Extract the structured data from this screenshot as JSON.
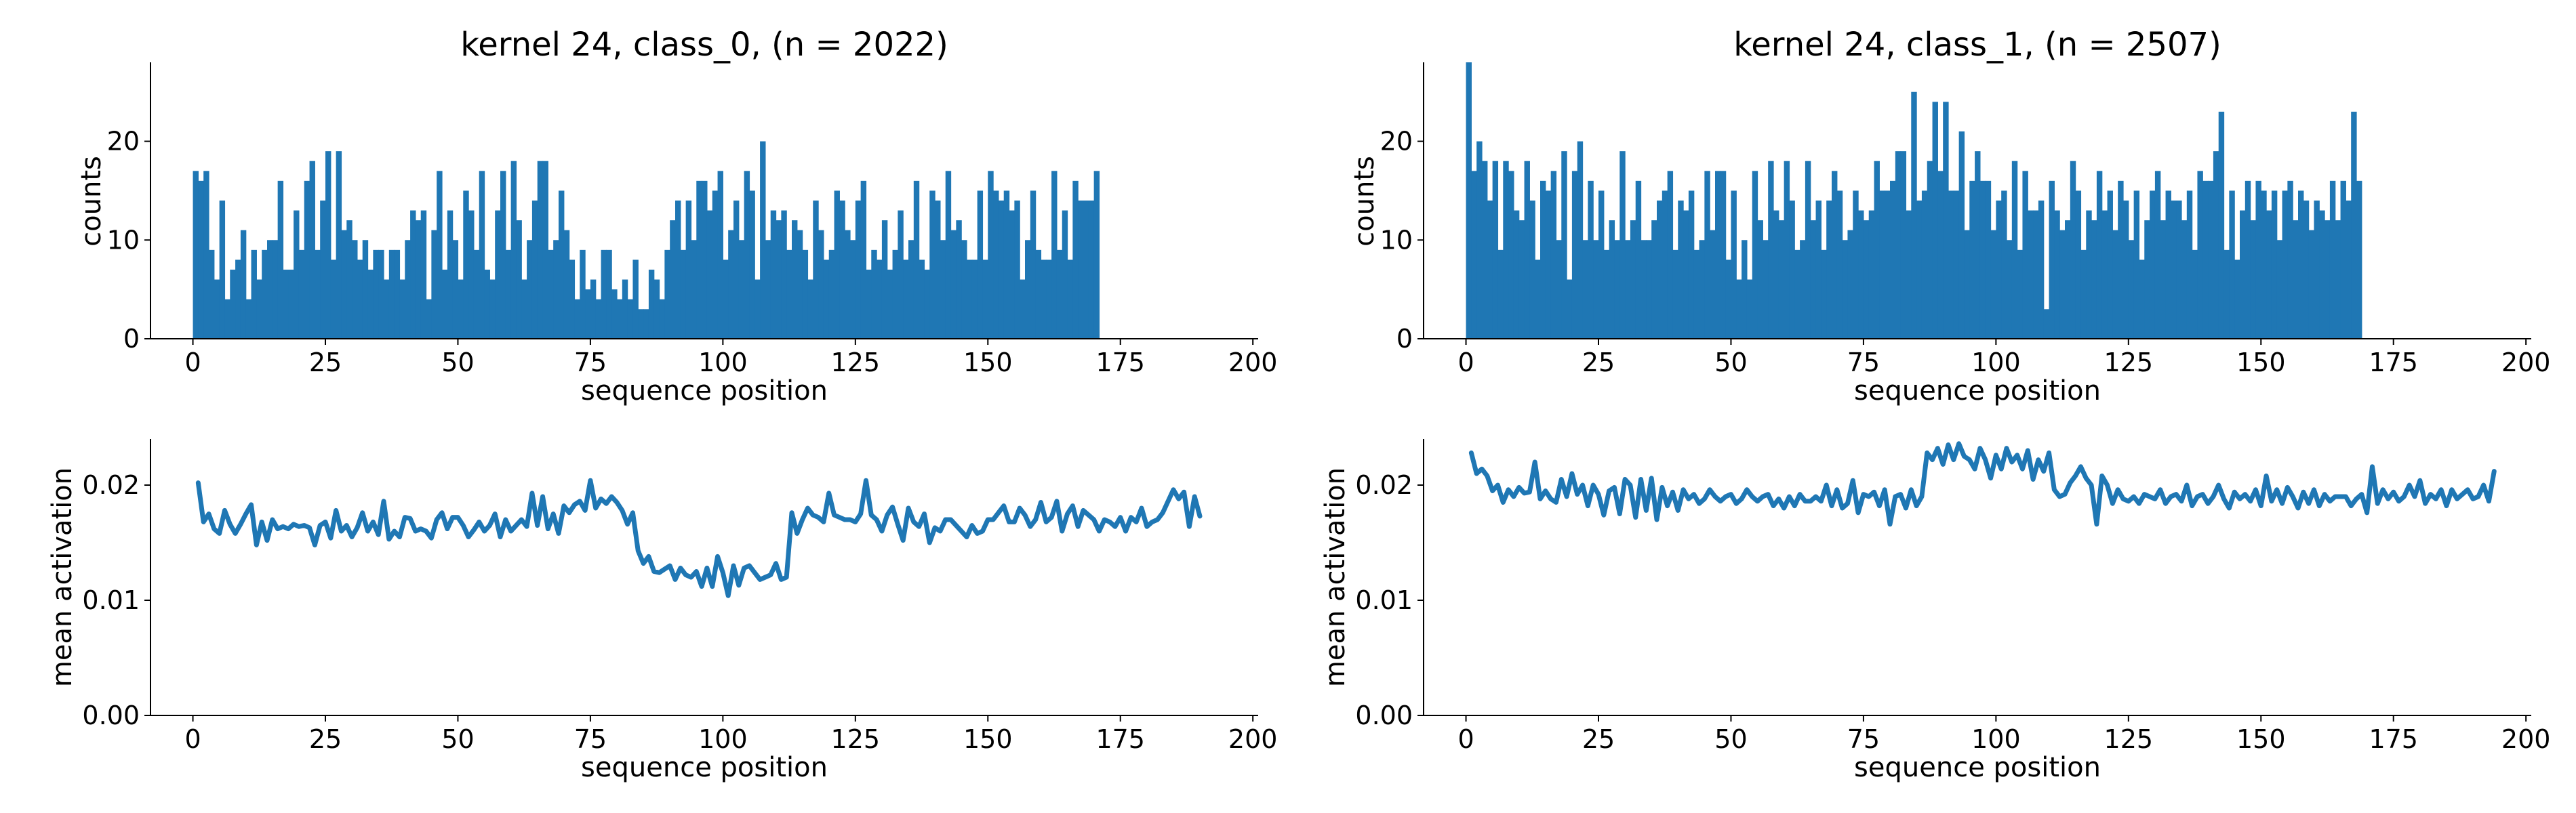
{
  "figure": {
    "colors": {
      "series": "#1f77b4",
      "axis": "#000000",
      "background": "#ffffff"
    }
  },
  "chart_data": [
    {
      "type": "bar",
      "title": "kernel 24, class_0, (n = 2022)",
      "xlabel": "sequence position",
      "ylabel": "counts",
      "xlim": [
        -8,
        201
      ],
      "ylim": [
        0,
        28
      ],
      "xticks": [
        0,
        25,
        50,
        75,
        100,
        125,
        150,
        175,
        200
      ],
      "yticks": [
        0,
        10,
        20
      ],
      "grid": false,
      "x_start": 0,
      "values": [
        17,
        16,
        17,
        9,
        6,
        14,
        4,
        7,
        8,
        11,
        4,
        9,
        6,
        9,
        10,
        10,
        16,
        7,
        7,
        13,
        9,
        16,
        18,
        9,
        14,
        19,
        8,
        19,
        11,
        12,
        10,
        8,
        10,
        7,
        9,
        9,
        6,
        9,
        9,
        6,
        10,
        13,
        12,
        13,
        4,
        11,
        17,
        7,
        13,
        10,
        6,
        15,
        13,
        9,
        17,
        7,
        6,
        13,
        17,
        9,
        18,
        12,
        6,
        10,
        14,
        18,
        18,
        9,
        10,
        15,
        11,
        8,
        4,
        9,
        5,
        6,
        4,
        9,
        9,
        5,
        4,
        6,
        4,
        8,
        3,
        3,
        7,
        6,
        4,
        9,
        12,
        14,
        9,
        14,
        10,
        16,
        16,
        13,
        15,
        17,
        8,
        11,
        14,
        10,
        17,
        15,
        6,
        20,
        10,
        13,
        12,
        13,
        9,
        12,
        11,
        9,
        6,
        14,
        11,
        8,
        9,
        15,
        14,
        11,
        10,
        14,
        16,
        7,
        9,
        8,
        12,
        7,
        9,
        13,
        8,
        10,
        16,
        8,
        7,
        15,
        14,
        10,
        17,
        11,
        12,
        10,
        8,
        8,
        15,
        8,
        17,
        15,
        14,
        15,
        13,
        14,
        6,
        10,
        15,
        9,
        8,
        8,
        17,
        9,
        13,
        8,
        16,
        14,
        14,
        14,
        17
      ]
    },
    {
      "type": "bar",
      "title": "kernel 24, class_1, (n = 2507)",
      "xlabel": "sequence position",
      "ylabel": "counts",
      "xlim": [
        -8,
        201
      ],
      "ylim": [
        0,
        28
      ],
      "xticks": [
        0,
        25,
        50,
        75,
        100,
        125,
        150,
        175,
        200
      ],
      "yticks": [
        0,
        10,
        20
      ],
      "grid": false,
      "x_start": 0,
      "values": [
        28,
        17,
        20,
        18,
        14,
        18,
        9,
        18,
        17,
        13,
        12,
        18,
        14,
        8,
        16,
        15,
        17,
        10,
        19,
        6,
        17,
        20,
        10,
        16,
        10,
        15,
        9,
        12,
        10,
        19,
        10,
        12,
        16,
        10,
        10,
        12,
        14,
        15,
        17,
        9,
        14,
        13,
        15,
        9,
        10,
        17,
        11,
        17,
        17,
        8,
        15,
        6,
        10,
        6,
        17,
        12,
        10,
        18,
        13,
        12,
        18,
        14,
        9,
        10,
        18,
        12,
        14,
        9,
        14,
        17,
        15,
        10,
        11,
        15,
        13,
        12,
        13,
        18,
        15,
        15,
        16,
        19,
        19,
        13,
        25,
        14,
        15,
        18,
        24,
        17,
        24,
        15,
        15,
        21,
        11,
        16,
        19,
        16,
        16,
        11,
        14,
        15,
        10,
        18,
        9,
        17,
        13,
        13,
        14,
        3,
        16,
        13,
        11,
        12,
        18,
        15,
        9,
        13,
        12,
        17,
        13,
        15,
        11,
        16,
        14,
        10,
        15,
        8,
        12,
        15,
        17,
        12,
        15,
        14,
        14,
        12,
        15,
        9,
        17,
        16,
        16,
        19,
        23,
        9,
        15,
        8,
        13,
        16,
        12,
        16,
        15,
        13,
        15,
        10,
        15,
        16,
        12,
        15,
        14,
        11,
        14,
        13,
        12,
        16,
        12,
        16,
        14,
        23,
        16
      ]
    },
    {
      "type": "line",
      "title": "",
      "xlabel": "sequence position",
      "ylabel": "mean activation",
      "xlim": [
        -8,
        201
      ],
      "ylim": [
        0,
        0.024
      ],
      "xticks": [
        0,
        25,
        50,
        75,
        100,
        125,
        150,
        175,
        200
      ],
      "yticks": [
        0.0,
        0.01,
        0.02
      ],
      "ytick_labels": [
        "0.00",
        "0.01",
        "0.02"
      ],
      "grid": false,
      "x_start": 1,
      "values": [
        0.0202,
        0.0168,
        0.0175,
        0.0162,
        0.0158,
        0.0178,
        0.0166,
        0.0158,
        0.0166,
        0.0175,
        0.0183,
        0.0148,
        0.0168,
        0.0152,
        0.017,
        0.0162,
        0.0164,
        0.0162,
        0.0166,
        0.0164,
        0.0165,
        0.0163,
        0.0148,
        0.0165,
        0.0168,
        0.0154,
        0.0178,
        0.016,
        0.0165,
        0.0155,
        0.0163,
        0.0176,
        0.016,
        0.0168,
        0.0157,
        0.0186,
        0.0153,
        0.016,
        0.0155,
        0.0172,
        0.0171,
        0.016,
        0.0162,
        0.016,
        0.0154,
        0.017,
        0.0176,
        0.0162,
        0.0172,
        0.0172,
        0.0165,
        0.0155,
        0.0161,
        0.0168,
        0.016,
        0.0165,
        0.0175,
        0.0155,
        0.017,
        0.016,
        0.0165,
        0.017,
        0.0164,
        0.0193,
        0.0165,
        0.019,
        0.0162,
        0.0175,
        0.0158,
        0.0182,
        0.0176,
        0.0183,
        0.0186,
        0.0178,
        0.0204,
        0.018,
        0.0188,
        0.0184,
        0.019,
        0.0185,
        0.0178,
        0.0166,
        0.0176,
        0.0143,
        0.0132,
        0.0138,
        0.0125,
        0.0124,
        0.0127,
        0.013,
        0.0118,
        0.0128,
        0.0122,
        0.012,
        0.0125,
        0.0112,
        0.0128,
        0.0112,
        0.0138,
        0.0124,
        0.0104,
        0.013,
        0.0113,
        0.0128,
        0.013,
        0.0124,
        0.0118,
        0.012,
        0.0122,
        0.0132,
        0.0118,
        0.012,
        0.0176,
        0.0158,
        0.017,
        0.018,
        0.0174,
        0.0172,
        0.0168,
        0.0193,
        0.0174,
        0.0172,
        0.017,
        0.017,
        0.0168,
        0.0175,
        0.0204,
        0.0174,
        0.017,
        0.016,
        0.0174,
        0.0181,
        0.0166,
        0.0152,
        0.018,
        0.0168,
        0.0164,
        0.0175,
        0.015,
        0.0163,
        0.016,
        0.017,
        0.017,
        0.0165,
        0.016,
        0.0155,
        0.0165,
        0.0158,
        0.016,
        0.017,
        0.017,
        0.0176,
        0.0182,
        0.0168,
        0.0168,
        0.018,
        0.0174,
        0.0164,
        0.017,
        0.0185,
        0.0168,
        0.0172,
        0.0186,
        0.016,
        0.0175,
        0.0182,
        0.0164,
        0.0178,
        0.0174,
        0.017,
        0.016,
        0.017,
        0.0168,
        0.0164,
        0.0172,
        0.016,
        0.0172,
        0.0168,
        0.018,
        0.0164,
        0.0168,
        0.017,
        0.0176,
        0.0186,
        0.0196,
        0.0188,
        0.0194,
        0.0164,
        0.019,
        0.0173
      ]
    },
    {
      "type": "line",
      "title": "",
      "xlabel": "sequence position",
      "ylabel": "mean activation",
      "xlim": [
        -8,
        201
      ],
      "ylim": [
        0,
        0.024
      ],
      "xticks": [
        0,
        25,
        50,
        75,
        100,
        125,
        150,
        175,
        200
      ],
      "yticks": [
        0.0,
        0.01,
        0.02
      ],
      "ytick_labels": [
        "0.00",
        "0.01",
        "0.02"
      ],
      "grid": false,
      "x_start": 1,
      "values": [
        0.0228,
        0.021,
        0.0214,
        0.0208,
        0.0195,
        0.02,
        0.0185,
        0.0196,
        0.019,
        0.0198,
        0.0193,
        0.0194,
        0.022,
        0.0188,
        0.0195,
        0.0188,
        0.0185,
        0.0205,
        0.019,
        0.021,
        0.0192,
        0.02,
        0.0182,
        0.02,
        0.0192,
        0.0174,
        0.0195,
        0.0198,
        0.0175,
        0.0205,
        0.02,
        0.0172,
        0.0205,
        0.0178,
        0.0206,
        0.017,
        0.0198,
        0.0182,
        0.0194,
        0.0178,
        0.0196,
        0.0188,
        0.0192,
        0.0184,
        0.0188,
        0.0196,
        0.019,
        0.0186,
        0.019,
        0.0192,
        0.0184,
        0.0188,
        0.0196,
        0.019,
        0.0186,
        0.019,
        0.0192,
        0.0182,
        0.0188,
        0.018,
        0.019,
        0.0182,
        0.0192,
        0.0186,
        0.0186,
        0.019,
        0.0186,
        0.02,
        0.0182,
        0.0196,
        0.018,
        0.0184,
        0.0204,
        0.0176,
        0.0192,
        0.019,
        0.0194,
        0.0182,
        0.0196,
        0.0166,
        0.019,
        0.0192,
        0.018,
        0.0196,
        0.0182,
        0.019,
        0.0228,
        0.0222,
        0.0232,
        0.0218,
        0.0235,
        0.0222,
        0.0236,
        0.0225,
        0.0222,
        0.0214,
        0.0232,
        0.0222,
        0.0206,
        0.0226,
        0.0214,
        0.0232,
        0.022,
        0.0226,
        0.0214,
        0.023,
        0.0205,
        0.0222,
        0.0212,
        0.0228,
        0.0196,
        0.019,
        0.0192,
        0.0202,
        0.0208,
        0.0216,
        0.0206,
        0.02,
        0.0166,
        0.0208,
        0.02,
        0.0184,
        0.0196,
        0.0188,
        0.0186,
        0.019,
        0.0184,
        0.0192,
        0.019,
        0.0188,
        0.0196,
        0.0184,
        0.019,
        0.0192,
        0.0186,
        0.02,
        0.0182,
        0.019,
        0.0192,
        0.0184,
        0.019,
        0.02,
        0.0188,
        0.018,
        0.0194,
        0.0188,
        0.0192,
        0.0186,
        0.0196,
        0.0182,
        0.0208,
        0.0186,
        0.0196,
        0.0184,
        0.0198,
        0.019,
        0.018,
        0.0194,
        0.0184,
        0.0196,
        0.0182,
        0.0192,
        0.0186,
        0.019,
        0.019,
        0.019,
        0.0182,
        0.0188,
        0.0192,
        0.0176,
        0.0216,
        0.0184,
        0.0196,
        0.0188,
        0.0194,
        0.0186,
        0.019,
        0.02,
        0.019,
        0.0204,
        0.0184,
        0.0192,
        0.0188,
        0.0196,
        0.0182,
        0.0196,
        0.0188,
        0.0192,
        0.0196,
        0.0188,
        0.019,
        0.02,
        0.0186,
        0.0212
      ]
    }
  ]
}
